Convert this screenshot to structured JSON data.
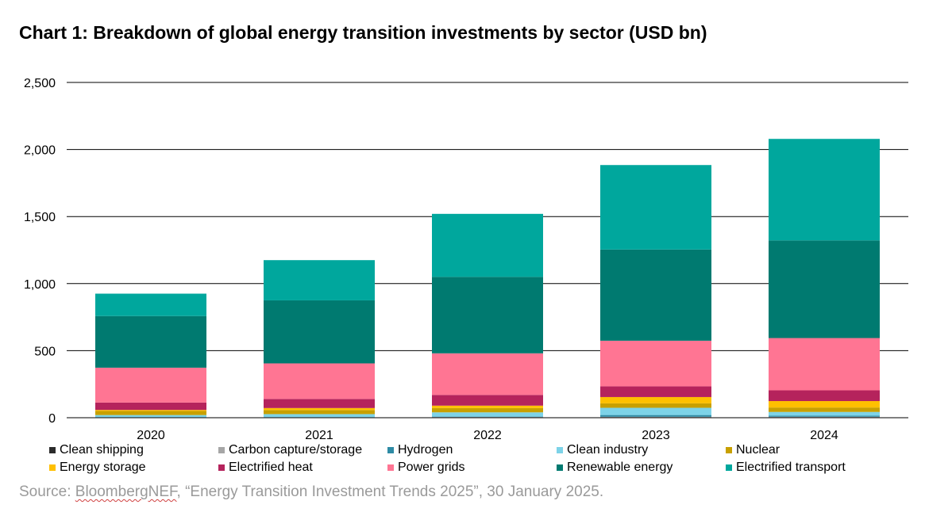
{
  "title": "Chart 1: Breakdown of global energy transition investments by sector (USD bn)",
  "source": {
    "prefix": "Source: ",
    "publisher": "BloombergNEF",
    "suffix": ", “Energy Transition Investment Trends 2025”, 30 January 2025."
  },
  "chart_data": {
    "type": "bar",
    "stacked": true,
    "categories": [
      "2020",
      "2021",
      "2022",
      "2023",
      "2024"
    ],
    "ylim": [
      0,
      2500
    ],
    "yticks": [
      0,
      500,
      1000,
      1500,
      2000,
      2500
    ],
    "ytick_labels": [
      "0",
      "500",
      "1,000",
      "1,500",
      "2,000",
      "2,500"
    ],
    "grid": true,
    "legend_position": "bottom",
    "series": [
      {
        "name": "Clean shipping",
        "color": "#2b2b2b",
        "values": [
          1,
          1,
          1,
          2,
          2
        ]
      },
      {
        "name": "Carbon capture/storage",
        "color": "#a6a6a6",
        "values": [
          2,
          2,
          4,
          5,
          5
        ]
      },
      {
        "name": "Hydrogen",
        "color": "#2e8ba5",
        "values": [
          1,
          1,
          3,
          13,
          8
        ]
      },
      {
        "name": "Clean industry",
        "color": "#7dd3e8",
        "values": [
          16,
          23,
          32,
          54,
          28
        ]
      },
      {
        "name": "Nuclear",
        "color": "#c8a000",
        "values": [
          30,
          30,
          32,
          33,
          33
        ]
      },
      {
        "name": "Energy storage",
        "color": "#ffc000",
        "values": [
          8,
          15,
          18,
          47,
          48
        ]
      },
      {
        "name": "Electrified heat",
        "color": "#b5235c",
        "values": [
          55,
          68,
          80,
          80,
          80
        ]
      },
      {
        "name": "Power grids",
        "color": "#ff7593",
        "values": [
          260,
          265,
          310,
          340,
          390
        ]
      },
      {
        "name": "Renewable energy",
        "color": "#007a70",
        "values": [
          385,
          470,
          570,
          680,
          728
        ]
      },
      {
        "name": "Electrified transport",
        "color": "#00a79d",
        "values": [
          167,
          300,
          470,
          630,
          757
        ]
      }
    ]
  }
}
